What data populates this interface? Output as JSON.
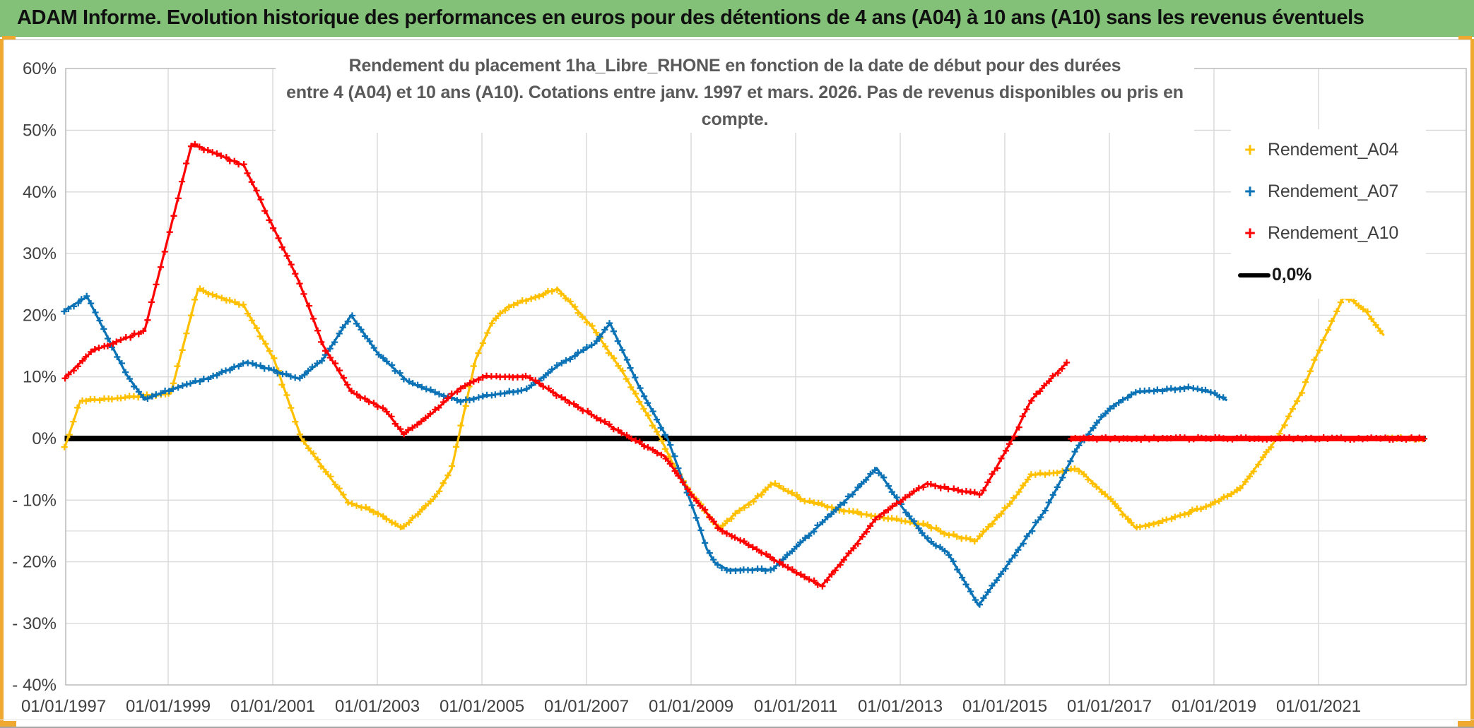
{
  "header": {
    "title": "ADAM Informe. Evolution historique des performances en euros pour des détentions de 4 ans (A04) à 10 ans (A10) sans les revenus éventuels"
  },
  "colors": {
    "header_bg": "#83c078",
    "frame_gold": "#efa931",
    "grid": "#d9d9d9",
    "plot_border": "#bfbfbf",
    "axis_text": "#3f3f3f",
    "title_text": "#595959",
    "series_a04": "#FFC000",
    "series_a07": "#0B72B5",
    "series_a10": "#FF0000",
    "baseline": "#000000"
  },
  "chart_data": {
    "type": "line",
    "title": "Rendement du placement 1ha_Libre_RHONE en fonction de la date de début pour des durées entre 4 (A04) et 10 ans (A10). Cotations entre janv. 1997 et mars. 2026. Pas de revenus disponibles ou pris en compte.",
    "title_lines": [
      "Rendement du placement 1ha_Libre_RHONE en fonction de la date de début pour des durées",
      "entre 4 (A04) et 10 ans (A10). Cotations entre janv. 1997 et mars. 2026. Pas de revenus disponibles ou pris en compte."
    ],
    "x_axis": {
      "tick_years": [
        1997,
        1999,
        2001,
        2003,
        2005,
        2007,
        2009,
        2011,
        2013,
        2015,
        2017,
        2019,
        2021
      ],
      "tick_labels": [
        "01/01/1997",
        "01/01/1999",
        "01/01/2001",
        "01/01/2003",
        "01/01/2005",
        "01/01/2007",
        "01/01/2009",
        "01/01/2011",
        "01/01/2013",
        "01/01/2015",
        "01/01/2017",
        "01/01/2019",
        "01/01/2021"
      ],
      "min_year": 1997.0,
      "max_year": 2023.8
    },
    "y_axis": {
      "unit": "%",
      "tick_values": [
        60,
        50,
        40,
        30,
        20,
        10,
        0,
        -10,
        -20,
        -30,
        -40
      ],
      "tick_labels": [
        "60%",
        "50%",
        "40%",
        "30%",
        "20%",
        "10%",
        "0%",
        "- 10%",
        "- 20%",
        "- 30%",
        "- 40%"
      ],
      "extra_gridline_value": -15,
      "ylim": [
        -40,
        60
      ]
    },
    "marker_step_years": 0.0833,
    "series": [
      {
        "name": "Rendement_A04",
        "color": "#FFC000",
        "marker": "+",
        "points": [
          [
            1997.02,
            -1.5
          ],
          [
            1997.32,
            6.1
          ],
          [
            1998.0,
            6.5
          ],
          [
            1999.05,
            7.3
          ],
          [
            1999.57,
            24.2
          ],
          [
            2000.45,
            21.5
          ],
          [
            2001.03,
            12.7
          ],
          [
            2001.55,
            0
          ],
          [
            2002.45,
            -10.4
          ],
          [
            2003.0,
            -12.0
          ],
          [
            2003.47,
            -14.6
          ],
          [
            2004.1,
            -9.6
          ],
          [
            2004.42,
            -5.0
          ],
          [
            2004.88,
            12.8
          ],
          [
            2005.2,
            19.0
          ],
          [
            2005.5,
            21.4
          ],
          [
            2006.45,
            24.3
          ],
          [
            2007.1,
            18.2
          ],
          [
            2007.72,
            10.4
          ],
          [
            2008.42,
            0
          ],
          [
            2008.72,
            -5.3
          ],
          [
            2009.05,
            -9.4
          ],
          [
            2009.55,
            -14.7
          ],
          [
            2009.85,
            -12.1
          ],
          [
            2010.3,
            -9.3
          ],
          [
            2010.55,
            -7.3
          ],
          [
            2011.2,
            -10.2
          ],
          [
            2012.05,
            -11.9
          ],
          [
            2013.0,
            -13.3
          ],
          [
            2013.55,
            -14.2
          ],
          [
            2013.9,
            -15.5
          ],
          [
            2014.45,
            -16.6
          ],
          [
            2015.15,
            -10.1
          ],
          [
            2015.5,
            -5.9
          ],
          [
            2015.85,
            -5.7
          ],
          [
            2016.4,
            -4.9
          ],
          [
            2017.05,
            -10.1
          ],
          [
            2017.5,
            -14.5
          ],
          [
            2018.1,
            -13.2
          ],
          [
            2018.9,
            -10.9
          ],
          [
            2019.5,
            -8.2
          ],
          [
            2020.2,
            0
          ],
          [
            2020.7,
            7.9
          ],
          [
            2021.05,
            15.2
          ],
          [
            2021.5,
            23.3
          ],
          [
            2021.9,
            20.7
          ],
          [
            2022.25,
            16.7
          ]
        ],
        "zero_tail_years": [
          2022.33,
          2023.03
        ],
        "zero_tail_solid": false
      },
      {
        "name": "Rendement_A07",
        "color": "#0B72B5",
        "marker": "+",
        "points": [
          [
            1997.02,
            20.8
          ],
          [
            1997.45,
            23.0
          ],
          [
            1998.2,
            10.4
          ],
          [
            1998.55,
            6.3
          ],
          [
            1999.0,
            7.8
          ],
          [
            1999.8,
            9.9
          ],
          [
            2000.5,
            12.4
          ],
          [
            2000.95,
            11.2
          ],
          [
            2001.5,
            9.7
          ],
          [
            2001.95,
            12.7
          ],
          [
            2002.5,
            20.0
          ],
          [
            2003.0,
            13.9
          ],
          [
            2003.6,
            9.1
          ],
          [
            2004.15,
            7.3
          ],
          [
            2004.6,
            6.1
          ],
          [
            2005.15,
            7.0
          ],
          [
            2005.85,
            7.9
          ],
          [
            2006.5,
            12.1
          ],
          [
            2007.15,
            15.3
          ],
          [
            2007.45,
            18.7
          ],
          [
            2008.0,
            8.5
          ],
          [
            2008.55,
            0
          ],
          [
            2009.1,
            -12.8
          ],
          [
            2009.3,
            -17.9
          ],
          [
            2009.45,
            -20.1
          ],
          [
            2009.7,
            -21.3
          ],
          [
            2010.55,
            -21.3
          ],
          [
            2012.05,
            -9.3
          ],
          [
            2012.55,
            -4.8
          ],
          [
            2013.05,
            -11.3
          ],
          [
            2013.55,
            -16.7
          ],
          [
            2013.9,
            -18.4
          ],
          [
            2014.5,
            -27.1
          ],
          [
            2015.15,
            -19.3
          ],
          [
            2015.8,
            -11.3
          ],
          [
            2016.4,
            -1.3
          ],
          [
            2016.8,
            2.9
          ],
          [
            2017.05,
            5.2
          ],
          [
            2017.5,
            7.5
          ],
          [
            2018.1,
            7.9
          ],
          [
            2018.5,
            8.3
          ],
          [
            2018.95,
            7.5
          ],
          [
            2019.25,
            6.2
          ]
        ]
      },
      {
        "name": "Rendement_A10",
        "color": "#FF0000",
        "marker": "+",
        "points": [
          [
            1997.02,
            9.8
          ],
          [
            1997.55,
            14.2
          ],
          [
            1998.2,
            16.3
          ],
          [
            1998.55,
            17.5
          ],
          [
            1999.45,
            47.8
          ],
          [
            2000.45,
            44.3
          ],
          [
            2001.5,
            25.5
          ],
          [
            2001.97,
            15.0
          ],
          [
            2002.5,
            7.6
          ],
          [
            2003.15,
            4.7
          ],
          [
            2003.5,
            0.7
          ],
          [
            2004.05,
            4.1
          ],
          [
            2004.57,
            8.1
          ],
          [
            2005.0,
            10.0
          ],
          [
            2005.85,
            10.1
          ],
          [
            2006.5,
            6.8
          ],
          [
            2007.15,
            3.6
          ],
          [
            2007.85,
            0
          ],
          [
            2008.5,
            -2.9
          ],
          [
            2009.0,
            -9.0
          ],
          [
            2009.55,
            -14.7
          ],
          [
            2010.3,
            -18.2
          ],
          [
            2011.05,
            -22.0
          ],
          [
            2011.5,
            -23.9
          ],
          [
            2012.1,
            -17.8
          ],
          [
            2012.55,
            -12.8
          ],
          [
            2013.5,
            -7.3
          ],
          [
            2013.9,
            -8.1
          ],
          [
            2014.55,
            -9.1
          ],
          [
            2015.15,
            0
          ],
          [
            2015.5,
            6.2
          ],
          [
            2015.85,
            9.4
          ],
          [
            2016.2,
            12.4
          ]
        ],
        "zero_tail_years": [
          2016.27,
          2023.03
        ],
        "zero_tail_solid": true
      }
    ],
    "baseline": {
      "label": "0,0%",
      "value": 0,
      "color": "#000000",
      "span_years": [
        1997.02,
        2023.05
      ]
    },
    "legend": {
      "position": "right",
      "items": [
        {
          "label": "Rendement_A04",
          "color": "#FFC000",
          "marker": "+"
        },
        {
          "label": "Rendement_A07",
          "color": "#0B72B5",
          "marker": "+"
        },
        {
          "label": "Rendement_A10",
          "color": "#FF0000",
          "marker": "+"
        },
        {
          "label": "0,0%",
          "color": "#000000",
          "marker": "line"
        }
      ]
    }
  }
}
